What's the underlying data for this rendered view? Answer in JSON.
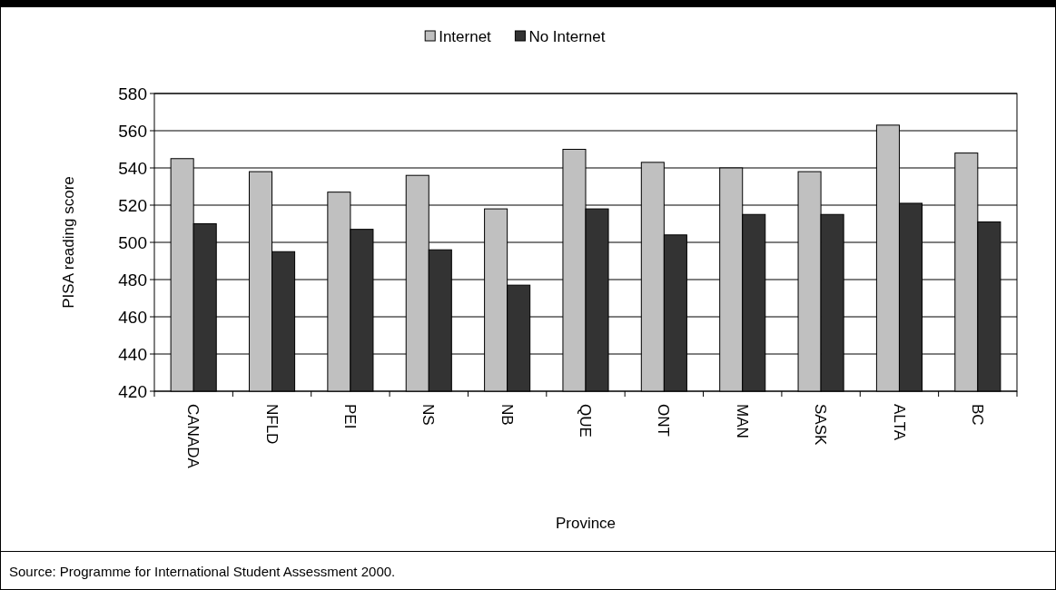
{
  "chart_data": {
    "type": "bar",
    "xlabel": "Province",
    "ylabel": "PISA reading score",
    "categories": [
      "CANADA",
      "NFLD",
      "PEI",
      "NS",
      "NB",
      "QUE",
      "ONT",
      "MAN",
      "SASK",
      "ALTA",
      "BC"
    ],
    "series": [
      {
        "name": "Internet",
        "color": "#c0c0c0",
        "values": [
          545,
          538,
          527,
          536,
          518,
          550,
          543,
          540,
          538,
          563,
          548
        ]
      },
      {
        "name": "No Internet",
        "color": "#333333",
        "values": [
          510,
          495,
          507,
          496,
          477,
          518,
          504,
          515,
          515,
          521,
          511
        ]
      }
    ],
    "ylim": [
      420,
      580
    ],
    "yticks": [
      420,
      440,
      460,
      480,
      500,
      520,
      540,
      560,
      580
    ],
    "grid": "y",
    "legend": "top",
    "annotations": [
      "Source: Programme for International Student Assessment 2000."
    ]
  }
}
